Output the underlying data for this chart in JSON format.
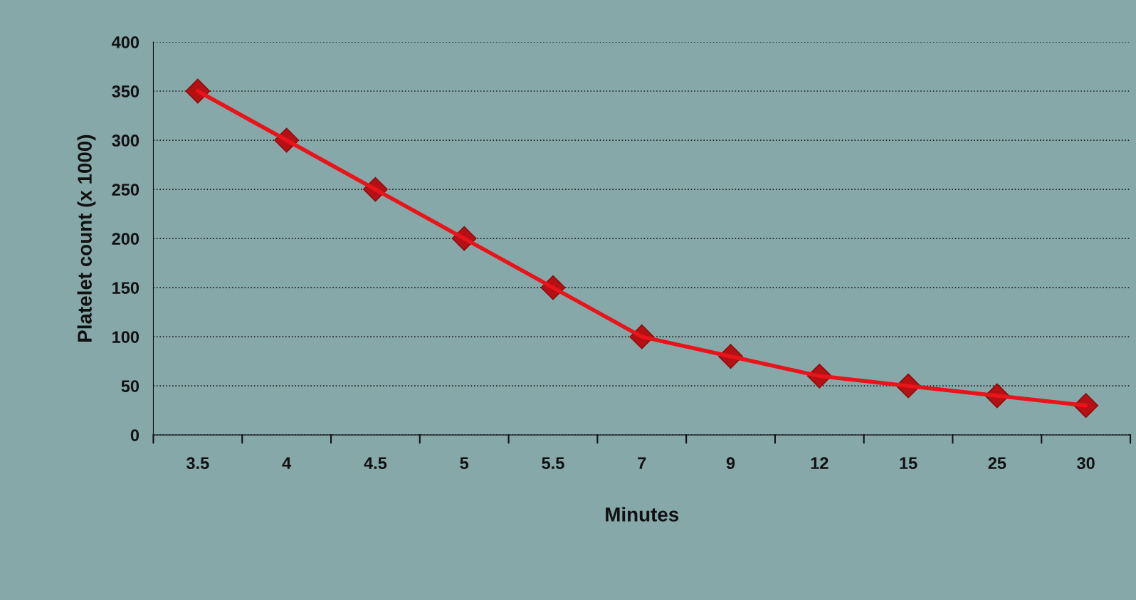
{
  "chart_data": {
    "type": "line",
    "xlabel": "Minutes",
    "ylabel": "Platelet count (x 1000)",
    "categories": [
      "3.5",
      "4",
      "4.5",
      "5",
      "5.5",
      "7",
      "9",
      "12",
      "15",
      "25",
      "30"
    ],
    "series": [
      {
        "color": "#e8141a",
        "values": [
          350,
          300,
          250,
          200,
          150,
          100,
          80,
          60,
          50,
          40,
          30
        ]
      }
    ],
    "ylim": [
      0,
      400
    ],
    "yticks": [
      0,
      50,
      100,
      150,
      200,
      250,
      300,
      350,
      400
    ],
    "grid": "y",
    "marker": "diamond",
    "line_style": "solid",
    "legend": false
  }
}
